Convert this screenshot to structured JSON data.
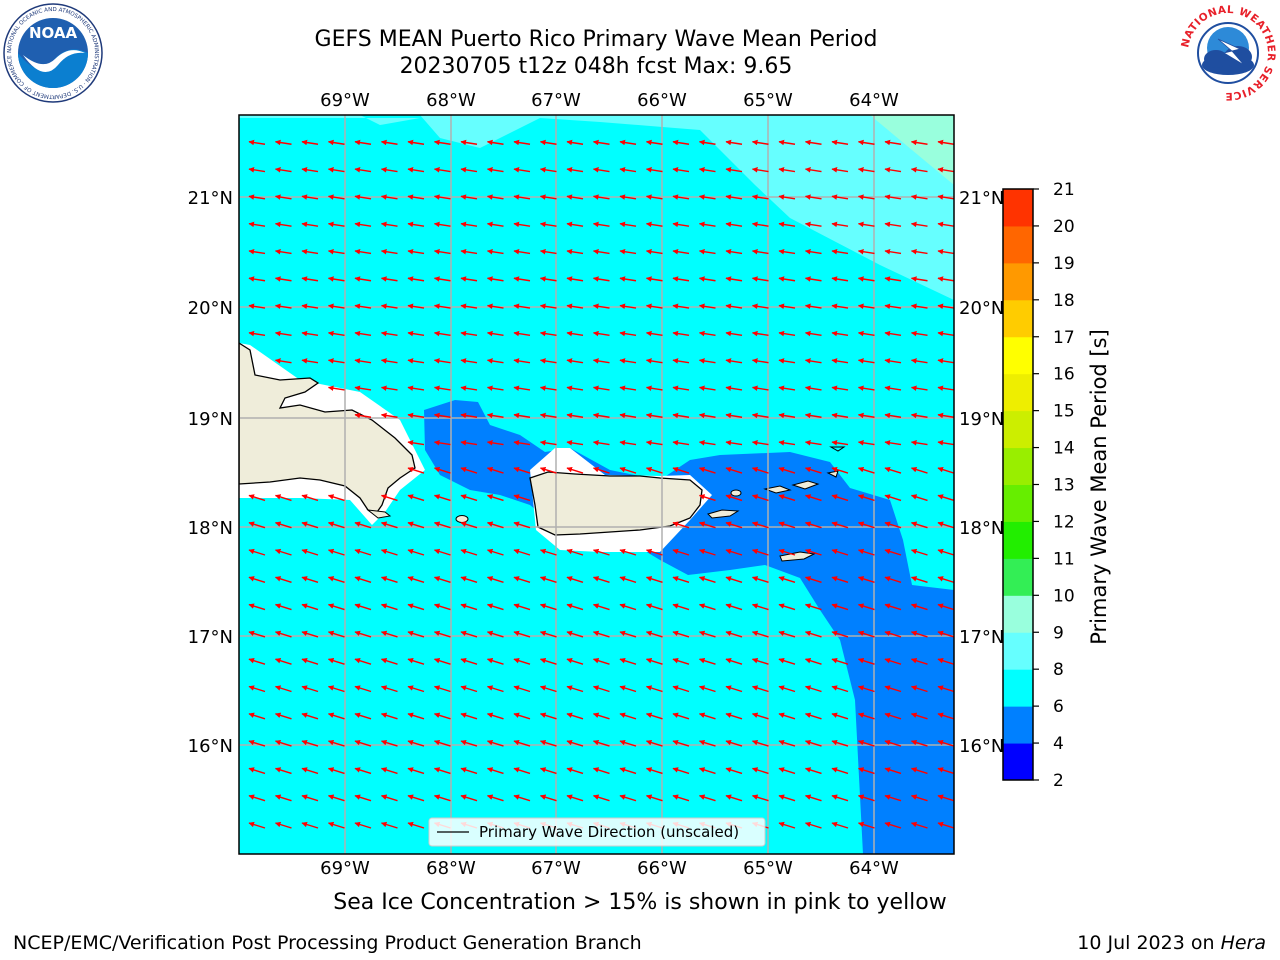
{
  "title": {
    "line1": "GEFS MEAN Puerto Rico Primary Wave Mean Period",
    "line2": "20230705 t12z 048h fcst   Max: 9.65"
  },
  "map": {
    "lon_labels": [
      "69°W",
      "68°W",
      "67°W",
      "66°W",
      "65°W",
      "64°W"
    ],
    "lat_labels": [
      "21°N",
      "20°N",
      "19°N",
      "18°N",
      "17°N",
      "16°N"
    ],
    "legend_label": "Primary Wave Direction (unscaled)",
    "arrow_color": "#ff0000",
    "land_color": "#efedda"
  },
  "colorbar": {
    "label": "Primary Wave Mean Period [s]",
    "ticks": [
      "2",
      "4",
      "6",
      "8",
      "9",
      "10",
      "11",
      "12",
      "13",
      "14",
      "15",
      "16",
      "17",
      "18",
      "19",
      "20",
      "21"
    ],
    "colors": [
      "#0000ff",
      "#0080ff",
      "#00ffff",
      "#66ffff",
      "#99ffdd",
      "#33ee55",
      "#22ee00",
      "#66ee00",
      "#99ee00",
      "#ccee00",
      "#eeee00",
      "#ffff00",
      "#ffcc00",
      "#ff9900",
      "#ff6600",
      "#ff3300",
      "#ff0000"
    ]
  },
  "logos": {
    "noaa_text": "NOAA",
    "noaa_ring": "NATIONAL OCEANIC AND ATMOSPHERIC ADMINISTRATION · U.S. DEPARTMENT OF COMMERCE",
    "nws_ring": "NATIONAL WEATHER SERVICE"
  },
  "footer": {
    "note": "Sea Ice Concentration > 15% is shown in pink to yellow",
    "credit": "NCEP/EMC/Verification Post Processing Product Generation Branch",
    "date": "10 Jul 2023 on ",
    "host": "Hera"
  }
}
